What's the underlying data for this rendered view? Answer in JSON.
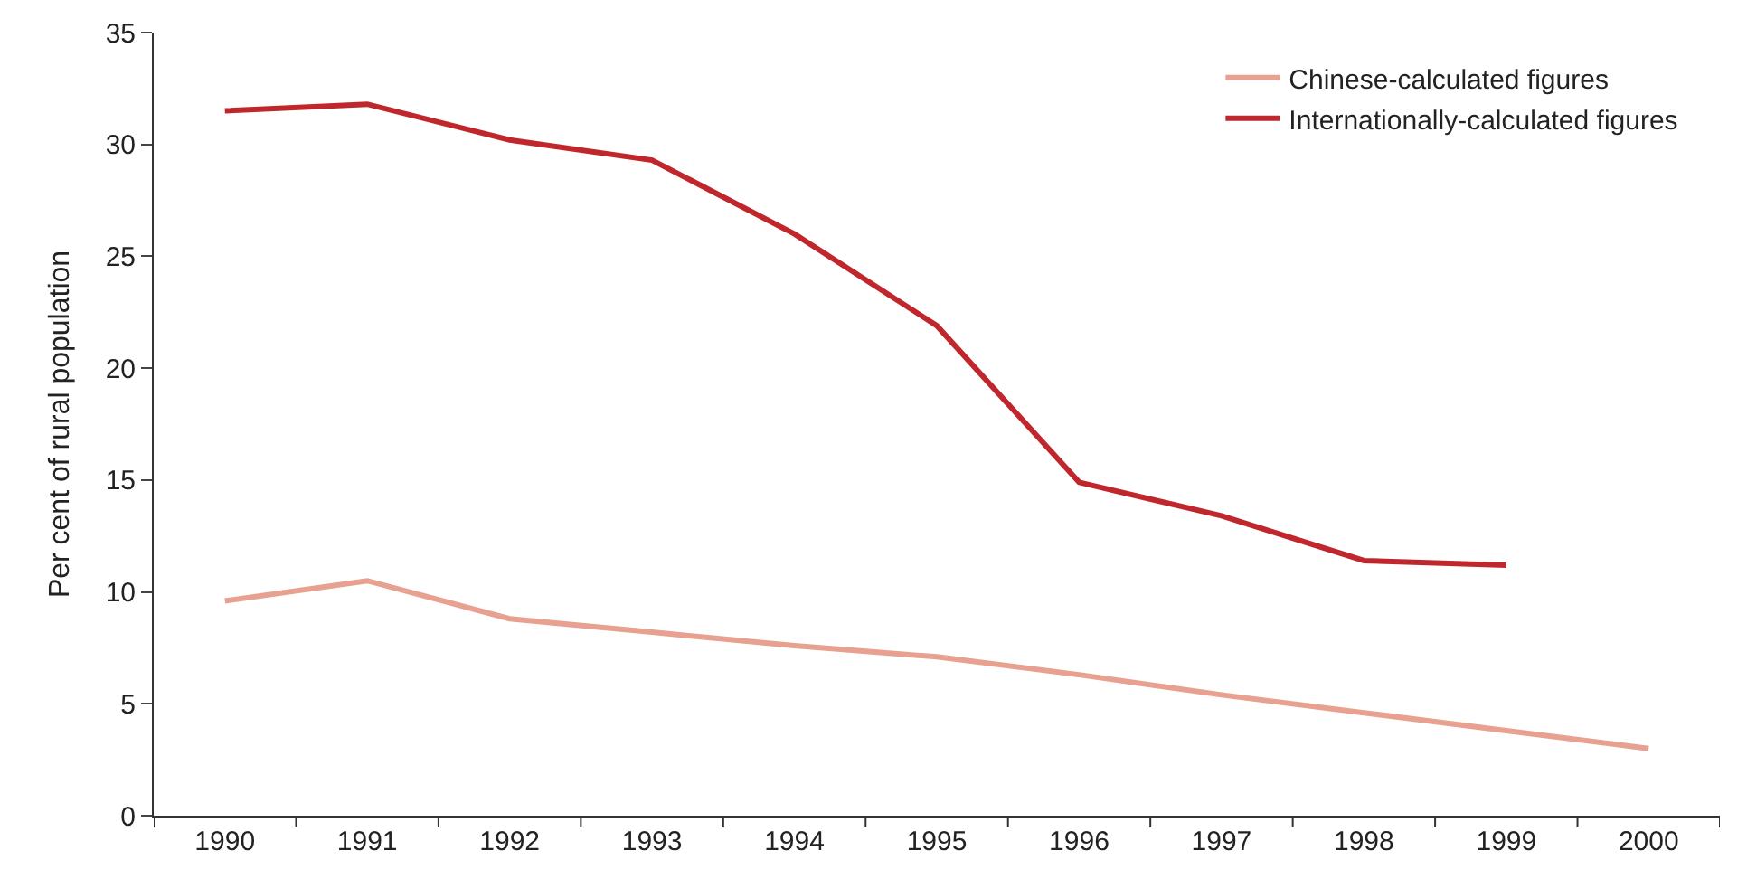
{
  "chart_data": {
    "type": "line",
    "ylabel": "Per cent of rural population",
    "categories": [
      "1990",
      "1991",
      "1992",
      "1993",
      "1994",
      "1995",
      "1996",
      "1997",
      "1998",
      "1999",
      "2000"
    ],
    "series": [
      {
        "name": "Chinese-calculated figures",
        "color": "#e8a090",
        "values": [
          9.6,
          10.5,
          8.8,
          8.2,
          7.6,
          7.1,
          6.3,
          5.4,
          4.6,
          3.8,
          3.0
        ]
      },
      {
        "name": "Internationally-calculated figures",
        "color": "#c0272d",
        "values": [
          31.5,
          31.8,
          30.2,
          29.3,
          26.0,
          21.9,
          14.9,
          13.4,
          11.4,
          11.2,
          null
        ]
      }
    ],
    "ylim": [
      0,
      35
    ],
    "yticks": [
      0,
      5,
      10,
      15,
      20,
      25,
      30,
      35
    ],
    "legend": "top right",
    "marker": "none",
    "line_style": "solid"
  }
}
